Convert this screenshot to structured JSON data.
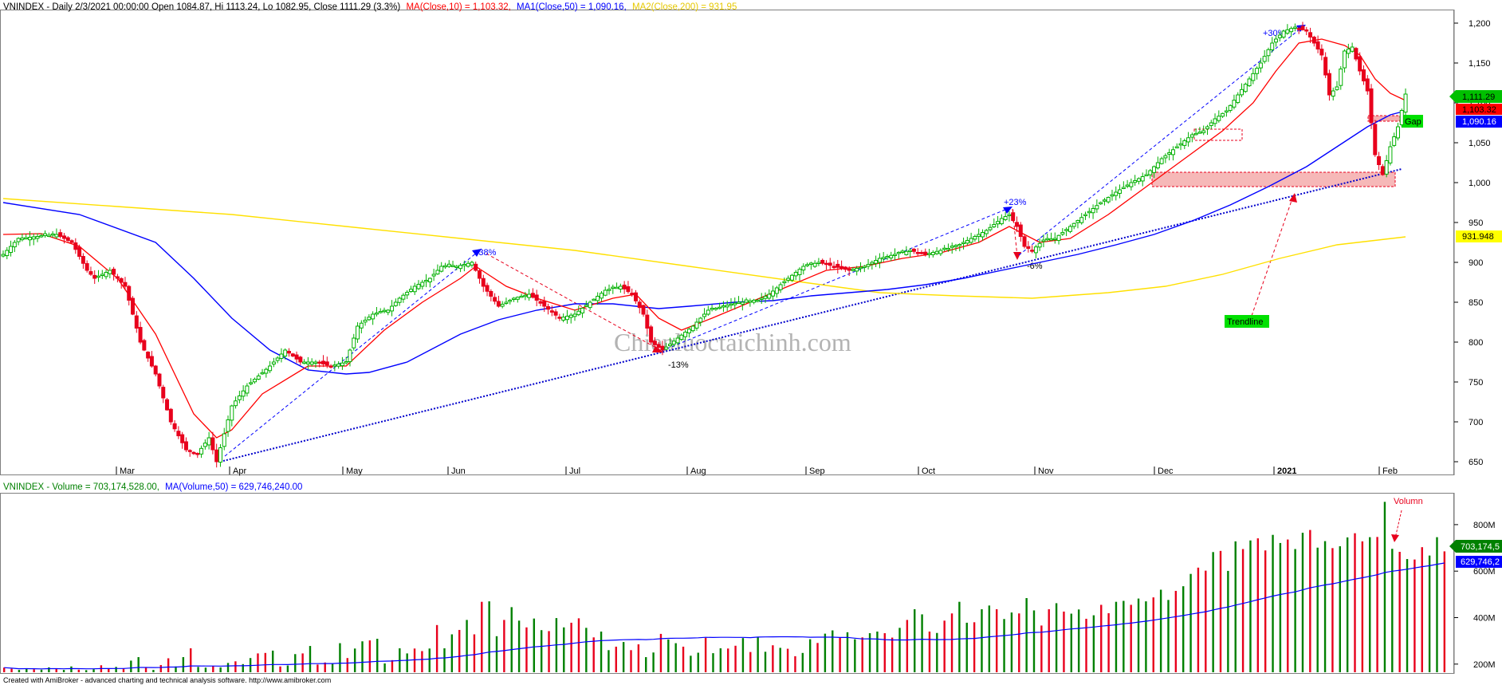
{
  "price_header": {
    "prefix": "VNINDEX - Daily 2/3/2021 00:00:00 Open 1084.87, Hi 1113.24, Lo 1082.95, Close 1111.29 (3.3%)",
    "ma10": "MA(Close,10) = 1,103.32,",
    "ma50": "MA1(Close,50) = 1,090.16,",
    "ma200": "MA2(Close,200) = 931.95"
  },
  "volume_header": {
    "prefix": "VNINDEX - Volume = 703,174,528.00,",
    "ma": "MA(Volume,50) = 629,746,240.00"
  },
  "footer": "Created with AmiBroker - advanced charting and technical analysis software. http://www.amibroker.com",
  "watermark": "Chienluoctaichinh.com",
  "labels": {
    "close_tag": "1,111.29",
    "ma10_tag": "1,103.32",
    "ma50_tag": "1,090.16",
    "ma200_tag": "931.948",
    "vol_tag": "703,174,5",
    "vol_ma_tag": "629,746,2",
    "gap": "Gap",
    "trendline": "Trendline",
    "volume_note": "Volumn",
    "pct_38": "+38%",
    "pct_m13": "-13%",
    "pct_23": "+23%",
    "pct_m6": "-6%",
    "pct_30": "+30%"
  },
  "colors": {
    "up": "#00b000",
    "down": "#e8001c",
    "ma10": "#ff0000",
    "ma50": "#0000ff",
    "ma200": "#ffe000",
    "volume_up": "#008000",
    "volume_down": "#e8001c",
    "close_tag_bg": "#00c000",
    "ma10_tag_bg": "#ff0000",
    "ma50_tag_bg": "#0000ff",
    "ma200_tag_bg": "#ffff00",
    "gap_box": "#f4a6a6"
  },
  "chart_data": {
    "type": "candlestick",
    "price_axis": {
      "ticks": [
        650,
        700,
        750,
        800,
        850,
        900,
        950,
        1000,
        1050,
        1100,
        1150,
        1200
      ],
      "tick_labels": [
        "650",
        "700",
        "750",
        "800",
        "850",
        "900",
        "950",
        "1,000",
        "1,050",
        "1,100",
        "1,150",
        "1,200"
      ],
      "range": [
        635,
        1215
      ]
    },
    "volume_axis": {
      "ticks": [
        200,
        400,
        600,
        800
      ],
      "tick_labels": [
        "200M",
        "400M",
        "600M",
        "800M"
      ],
      "range": [
        165,
        930
      ],
      "unit": "M"
    },
    "x_labels": [
      "Mar",
      "Apr",
      "May",
      "Jun",
      "Jul",
      "Aug",
      "Sep",
      "Oct",
      "Nov",
      "Dec",
      "2021",
      "Feb"
    ],
    "anchors": [
      [
        0,
        910
      ],
      [
        4,
        930
      ],
      [
        14,
        935
      ],
      [
        18,
        925
      ],
      [
        22,
        890
      ],
      [
        24,
        880
      ],
      [
        28,
        890
      ],
      [
        32,
        870
      ],
      [
        36,
        800
      ],
      [
        40,
        760
      ],
      [
        44,
        700
      ],
      [
        48,
        665
      ],
      [
        51,
        660
      ],
      [
        54,
        680
      ],
      [
        56,
        650
      ],
      [
        60,
        720
      ],
      [
        64,
        745
      ],
      [
        70,
        770
      ],
      [
        74,
        790
      ],
      [
        78,
        775
      ],
      [
        82,
        775
      ],
      [
        86,
        770
      ],
      [
        90,
        775
      ],
      [
        93,
        820
      ],
      [
        97,
        835
      ],
      [
        101,
        840
      ],
      [
        104,
        855
      ],
      [
        108,
        870
      ],
      [
        112,
        880
      ],
      [
        115,
        895
      ],
      [
        119,
        895
      ],
      [
        123,
        900
      ],
      [
        126,
        870
      ],
      [
        130,
        845
      ],
      [
        134,
        855
      ],
      [
        138,
        860
      ],
      [
        142,
        845
      ],
      [
        146,
        830
      ],
      [
        150,
        835
      ],
      [
        154,
        850
      ],
      [
        158,
        865
      ],
      [
        162,
        870
      ],
      [
        165,
        860
      ],
      [
        168,
        835
      ],
      [
        170,
        800
      ],
      [
        173,
        790
      ],
      [
        177,
        805
      ],
      [
        181,
        820
      ],
      [
        185,
        840
      ],
      [
        189,
        845
      ],
      [
        193,
        850
      ],
      [
        197,
        850
      ],
      [
        201,
        860
      ],
      [
        206,
        880
      ],
      [
        210,
        895
      ],
      [
        214,
        900
      ],
      [
        218,
        895
      ],
      [
        222,
        890
      ],
      [
        226,
        895
      ],
      [
        230,
        905
      ],
      [
        234,
        910
      ],
      [
        238,
        915
      ],
      [
        242,
        910
      ],
      [
        246,
        915
      ],
      [
        250,
        920
      ],
      [
        254,
        930
      ],
      [
        258,
        940
      ],
      [
        262,
        955
      ],
      [
        264,
        960
      ],
      [
        266,
        945
      ],
      [
        268,
        920
      ],
      [
        270,
        915
      ],
      [
        273,
        928
      ],
      [
        276,
        930
      ],
      [
        280,
        945
      ],
      [
        284,
        960
      ],
      [
        288,
        975
      ],
      [
        292,
        988
      ],
      [
        296,
        1000
      ],
      [
        300,
        1010
      ],
      [
        304,
        1030
      ],
      [
        308,
        1045
      ],
      [
        312,
        1060
      ],
      [
        315,
        1065
      ],
      [
        318,
        1080
      ],
      [
        321,
        1090
      ],
      [
        324,
        1110
      ],
      [
        327,
        1130
      ],
      [
        330,
        1150
      ],
      [
        333,
        1175
      ],
      [
        336,
        1190
      ],
      [
        339,
        1195
      ],
      [
        342,
        1190
      ],
      [
        344,
        1175
      ],
      [
        346,
        1160
      ],
      [
        348,
        1110
      ],
      [
        350,
        1120
      ],
      [
        352,
        1165
      ],
      [
        354,
        1170
      ],
      [
        356,
        1140
      ],
      [
        358,
        1115
      ],
      [
        360,
        1035
      ],
      [
        362,
        1010
      ],
      [
        364,
        1045
      ],
      [
        366,
        1070
      ],
      [
        368,
        1111
      ]
    ],
    "ma10": [
      [
        0,
        935
      ],
      [
        10,
        936
      ],
      [
        20,
        920
      ],
      [
        30,
        880
      ],
      [
        40,
        810
      ],
      [
        50,
        710
      ],
      [
        56,
        680
      ],
      [
        60,
        690
      ],
      [
        68,
        735
      ],
      [
        80,
        770
      ],
      [
        90,
        770
      ],
      [
        100,
        815
      ],
      [
        110,
        850
      ],
      [
        120,
        880
      ],
      [
        124,
        895
      ],
      [
        132,
        870
      ],
      [
        140,
        855
      ],
      [
        150,
        840
      ],
      [
        160,
        855
      ],
      [
        166,
        860
      ],
      [
        172,
        830
      ],
      [
        178,
        815
      ],
      [
        186,
        830
      ],
      [
        196,
        850
      ],
      [
        206,
        870
      ],
      [
        216,
        890
      ],
      [
        226,
        895
      ],
      [
        236,
        905
      ],
      [
        246,
        912
      ],
      [
        256,
        925
      ],
      [
        264,
        945
      ],
      [
        268,
        935
      ],
      [
        272,
        925
      ],
      [
        280,
        930
      ],
      [
        290,
        960
      ],
      [
        300,
        995
      ],
      [
        310,
        1030
      ],
      [
        320,
        1065
      ],
      [
        328,
        1100
      ],
      [
        334,
        1140
      ],
      [
        340,
        1175
      ],
      [
        346,
        1180
      ],
      [
        352,
        1172
      ],
      [
        356,
        1160
      ],
      [
        360,
        1130
      ],
      [
        364,
        1112
      ],
      [
        368,
        1103
      ]
    ],
    "ma50": [
      [
        0,
        975
      ],
      [
        20,
        960
      ],
      [
        40,
        925
      ],
      [
        50,
        880
      ],
      [
        60,
        830
      ],
      [
        70,
        790
      ],
      [
        80,
        765
      ],
      [
        90,
        760
      ],
      [
        96,
        762
      ],
      [
        106,
        775
      ],
      [
        120,
        810
      ],
      [
        130,
        828
      ],
      [
        140,
        840
      ],
      [
        150,
        848
      ],
      [
        160,
        848
      ],
      [
        172,
        842
      ],
      [
        180,
        845
      ],
      [
        192,
        850
      ],
      [
        202,
        852
      ],
      [
        212,
        858
      ],
      [
        222,
        862
      ],
      [
        232,
        866
      ],
      [
        242,
        872
      ],
      [
        252,
        880
      ],
      [
        262,
        890
      ],
      [
        272,
        900
      ],
      [
        282,
        910
      ],
      [
        292,
        922
      ],
      [
        302,
        935
      ],
      [
        312,
        952
      ],
      [
        322,
        972
      ],
      [
        332,
        995
      ],
      [
        342,
        1020
      ],
      [
        350,
        1045
      ],
      [
        358,
        1070
      ],
      [
        364,
        1085
      ],
      [
        368,
        1090
      ]
    ],
    "ma200": [
      [
        0,
        980
      ],
      [
        30,
        970
      ],
      [
        60,
        960
      ],
      [
        90,
        945
      ],
      [
        120,
        930
      ],
      [
        150,
        915
      ],
      [
        180,
        895
      ],
      [
        210,
        875
      ],
      [
        230,
        862
      ],
      [
        250,
        858
      ],
      [
        270,
        855
      ],
      [
        290,
        862
      ],
      [
        305,
        870
      ],
      [
        320,
        885
      ],
      [
        335,
        905
      ],
      [
        350,
        922
      ],
      [
        368,
        932
      ]
    ],
    "volume": [
      185,
      180,
      175,
      182,
      178,
      176,
      186,
      181,
      175,
      190,
      176,
      174,
      178,
      195,
      180,
      188,
      182,
      215,
      230,
      186,
      175,
      196,
      225,
      190,
      230,
      268,
      188,
      185,
      192,
      186,
      205,
      212,
      200,
      226,
      246,
      248,
      258,
      190,
      194,
      243,
      246,
      278,
      198,
      207,
      203,
      290,
      226,
      267,
      298,
      302,
      309,
      203,
      217,
      268,
      246,
      267,
      256,
      267,
      368,
      268,
      328,
      347,
      390,
      328,
      468,
      470,
      320,
      390,
      445,
      387,
      358,
      396,
      346,
      342,
      398,
      358,
      378,
      397,
      356,
      315,
      340,
      260,
      275,
      295,
      260,
      285,
      230,
      250,
      330,
      306,
      290,
      275,
      236,
      249,
      313,
      247,
      268,
      267,
      279,
      312,
      252,
      316,
      253,
      281,
      270,
      266,
      234,
      248,
      307,
      291,
      331,
      345,
      316,
      337,
      307,
      315,
      333,
      340,
      333,
      314,
      356,
      390,
      436,
      414,
      340,
      334,
      387,
      418,
      468,
      378,
      380,
      436,
      452,
      436,
      394,
      422,
      418,
      484,
      431,
      366,
      436,
      462,
      426,
      417,
      435,
      395,
      410,
      455,
      419,
      468,
      472,
      455,
      482,
      470,
      487,
      520,
      476,
      515,
      535,
      588,
      615,
      602,
      682,
      687,
      601,
      728,
      695,
      732,
      741,
      689,
      756,
      721,
      736,
      695,
      765,
      777,
      701,
      729,
      699,
      707,
      745,
      763,
      728,
      746,
      747,
      898,
      696,
      683,
      652,
      650,
      703,
      667,
      746,
      685
    ],
    "annotations": [
      "+38%",
      "-13%",
      "+23%",
      "-6%",
      "+30%",
      "Gap",
      "Trendline",
      "Volumn"
    ]
  }
}
